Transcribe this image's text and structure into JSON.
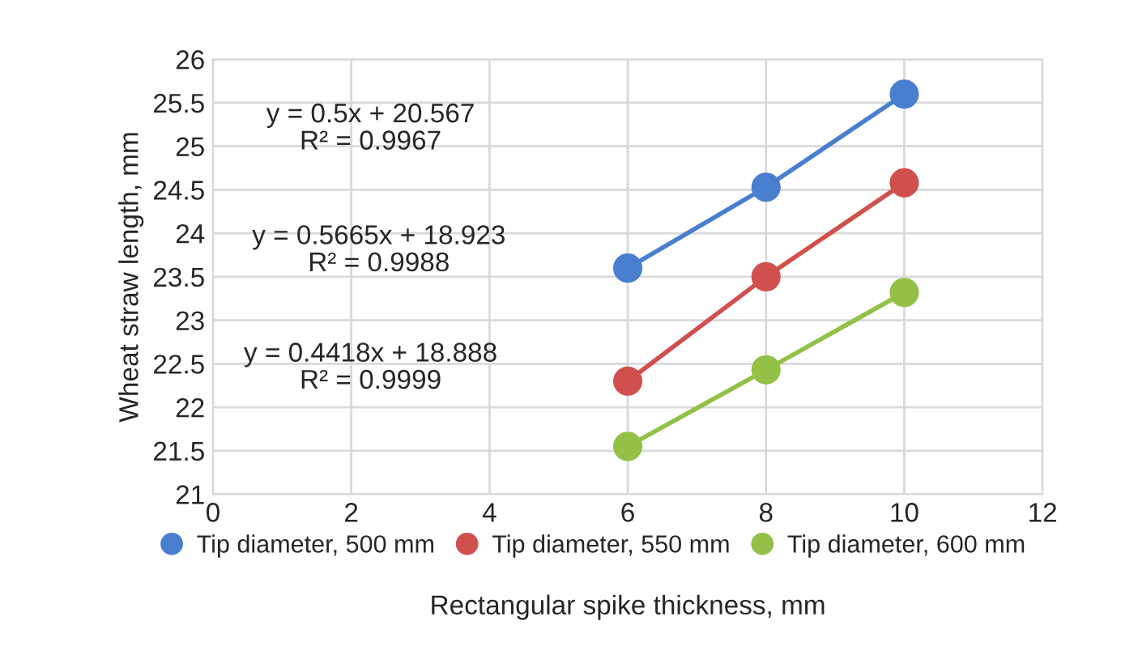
{
  "chart_data": {
    "type": "line",
    "xlabel": "Rectangular spike thickness, mm",
    "ylabel": "Wheat straw length, mm",
    "x": [
      6,
      8,
      10
    ],
    "series": [
      {
        "name": "Tip diameter, 500 mm",
        "color": "#4a7fcf",
        "values": [
          23.6,
          24.53,
          25.6
        ]
      },
      {
        "name": "Tip diameter, 550 mm",
        "color": "#d0504d",
        "values": [
          22.3,
          23.5,
          24.58
        ]
      },
      {
        "name": "Tip diameter, 600 mm",
        "color": "#93c047",
        "values": [
          21.55,
          22.43,
          23.32
        ]
      }
    ],
    "marker": "circle",
    "annotations": [
      "y = 0.5x + 20.567\nR² = 0.9967",
      "y = 0.5665x + 18.923\nR² = 0.9988",
      "y = 0.4418x + 18.888\nR² = 0.9999"
    ],
    "xlim": [
      0,
      12
    ],
    "xticks": [
      0,
      2,
      4,
      6,
      8,
      10,
      12
    ],
    "ylim": [
      21,
      26
    ],
    "yticks": [
      21,
      21.5,
      22,
      22.5,
      23,
      23.5,
      24,
      24.5,
      25,
      25.5,
      26
    ],
    "grid": true,
    "legend": "bottom"
  }
}
